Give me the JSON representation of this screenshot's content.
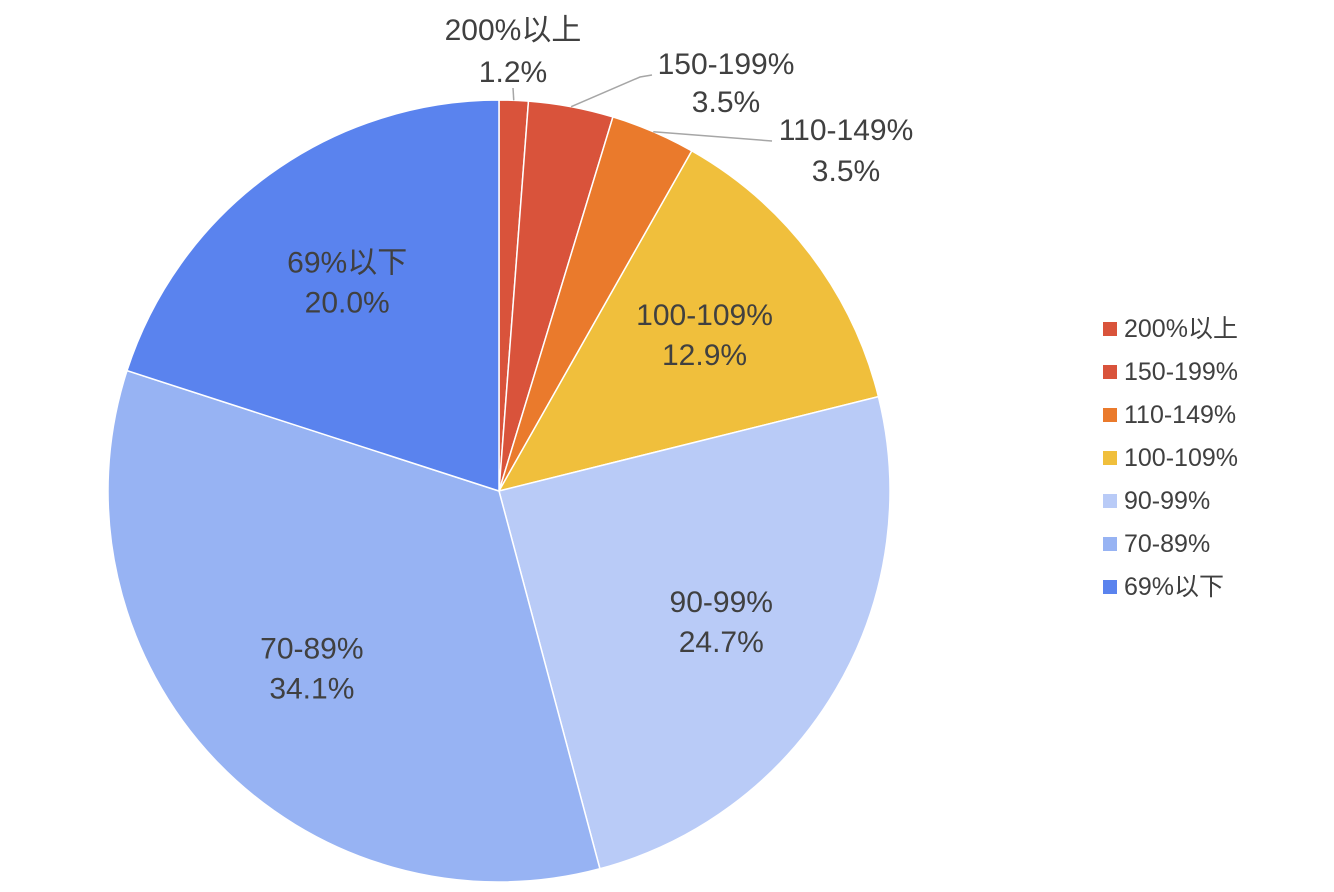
{
  "chart_data": {
    "type": "pie",
    "title": "",
    "legend_position": "right",
    "slices": [
      {
        "label": "200%以上",
        "value": 1.2,
        "value_label": "1.2%",
        "color": "#d9533b"
      },
      {
        "label": "150-199%",
        "value": 3.5,
        "value_label": "3.5%",
        "color": "#d9533b"
      },
      {
        "label": "110-149%",
        "value": 3.5,
        "value_label": "3.5%",
        "color": "#ea7a2c"
      },
      {
        "label": "100-109%",
        "value": 12.9,
        "value_label": "12.9%",
        "color": "#f0bf3c"
      },
      {
        "label": "90-99%",
        "value": 24.7,
        "value_label": "24.7%",
        "color": "#b9cbf7"
      },
      {
        "label": "70-89%",
        "value": 34.1,
        "value_label": "34.1%",
        "color": "#97b3f3"
      },
      {
        "label": "69%以下",
        "value": 20.0,
        "value_label": "20.0%",
        "color": "#5a83ee"
      }
    ]
  }
}
